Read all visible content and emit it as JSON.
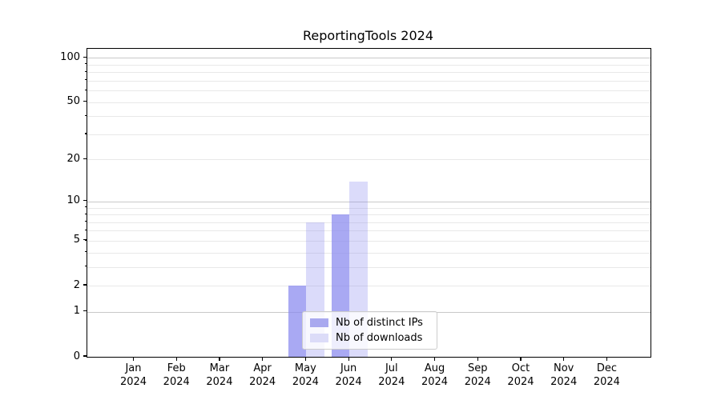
{
  "chart_data": {
    "type": "bar",
    "title": "ReportingTools 2024",
    "categories": [
      "Jan",
      "Feb",
      "Mar",
      "Apr",
      "May",
      "Jun",
      "Jul",
      "Aug",
      "Sep",
      "Oct",
      "Nov",
      "Dec"
    ],
    "category_year": "2024",
    "series": [
      {
        "name": "Nb of distinct IPs",
        "values": [
          0,
          0,
          0,
          0,
          2,
          8,
          0,
          0,
          0,
          0,
          0,
          0
        ],
        "color": "rgba(136,136,238,0.72)",
        "swatch": "#a9a9ef"
      },
      {
        "name": "Nb of downloads",
        "values": [
          0,
          0,
          0,
          0,
          7,
          14,
          0,
          0,
          0,
          0,
          0,
          0
        ],
        "color": "rgba(136,136,238,0.30)",
        "swatch": "#dcdcf8"
      }
    ],
    "yscale": "log1p",
    "ylim": [
      0,
      115
    ],
    "yticks": [
      0,
      1,
      2,
      5,
      10,
      20,
      50,
      100
    ],
    "grid_major": [
      1,
      10,
      100
    ],
    "grid_minor": [
      2,
      3,
      4,
      5,
      6,
      7,
      8,
      9,
      20,
      30,
      40,
      50,
      60,
      70,
      80,
      90
    ],
    "xlabel": "",
    "ylabel": "",
    "grid": "on",
    "legend_position": "lower center-right"
  },
  "colors": {
    "grid_major": "#c9c9c9",
    "grid_minor": "#e8e8e8",
    "spine": "#000000",
    "text": "#000000",
    "legend_border": "#cccccc"
  }
}
